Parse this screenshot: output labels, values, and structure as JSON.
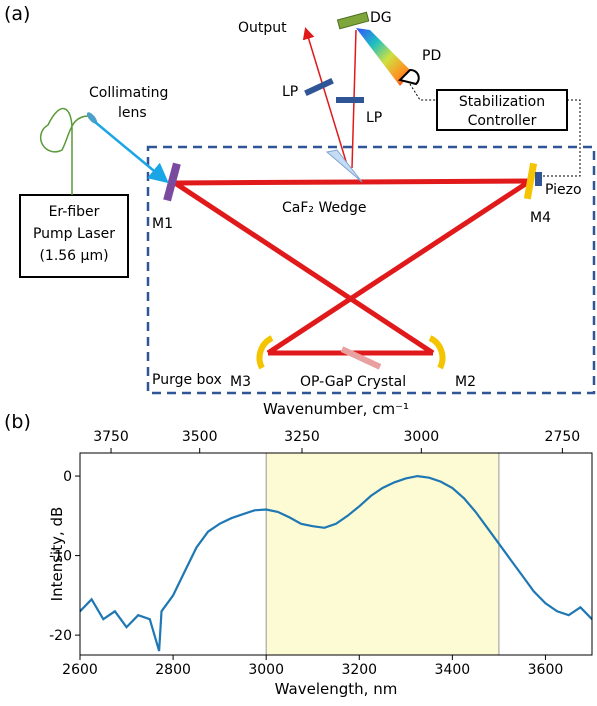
{
  "diagram": {
    "panel_a": "(a)",
    "output": "Output",
    "dg": "DG",
    "pd": "PD",
    "lp1": "LP",
    "lp2": "LP",
    "collimating_lens": [
      "Collimating",
      "lens"
    ],
    "controller": [
      "Stabilization",
      "Controller"
    ],
    "pump_laser": [
      "Er-fiber",
      "Pump Laser",
      "(1.56 μm)"
    ],
    "m1": "M1",
    "wedge": "CaF₂ Wedge",
    "piezo": "Piezo",
    "m4": "M4",
    "m3": "M3",
    "crystal": "OP-GaP Crystal",
    "m2": "M2",
    "purge_box": "Purge box"
  },
  "panel_b": "(b)",
  "chart_data": {
    "type": "line",
    "x2label": "Wavenumber, cm⁻¹",
    "xlabel": "Wavelength, nm",
    "ylabel": "Intensity, dB",
    "color": "#1f77b4",
    "x": [
      2600,
      2625,
      2650,
      2675,
      2700,
      2725,
      2750,
      2770,
      2775,
      2800,
      2825,
      2850,
      2875,
      2900,
      2925,
      2950,
      2975,
      3000,
      3025,
      3050,
      3075,
      3100,
      3125,
      3150,
      3175,
      3200,
      3225,
      3250,
      3275,
      3300,
      3325,
      3350,
      3375,
      3400,
      3425,
      3450,
      3475,
      3500,
      3525,
      3550,
      3575,
      3600,
      3625,
      3650,
      3675,
      3700
    ],
    "values": [
      -17,
      -15.5,
      -18,
      -17,
      -19,
      -17.5,
      -18,
      -22,
      -17,
      -15,
      -12,
      -9,
      -7,
      -6,
      -5.3,
      -4.8,
      -4.3,
      -4.2,
      -4.5,
      -5.2,
      -6,
      -6.3,
      -6.5,
      -6,
      -5,
      -3.8,
      -2.5,
      -1.5,
      -0.8,
      -0.3,
      0,
      -0.2,
      -0.7,
      -1.5,
      -2.8,
      -4.5,
      -6.5,
      -8.5,
      -10.5,
      -12.5,
      -14.5,
      -16,
      -17,
      -17.5,
      -16.5,
      -18
    ],
    "xlim": [
      2600,
      3700
    ],
    "xticks": [
      2600,
      2800,
      3000,
      3200,
      3400,
      3600
    ],
    "x2ticks": [
      3750,
      3500,
      3250,
      3000,
      2750
    ],
    "ylim": [
      -22.5,
      2.9
    ],
    "yticks": [
      0,
      -10,
      -20
    ],
    "highlight": {
      "x": [
        3000,
        3500
      ],
      "color": "#fdfbd3"
    }
  }
}
